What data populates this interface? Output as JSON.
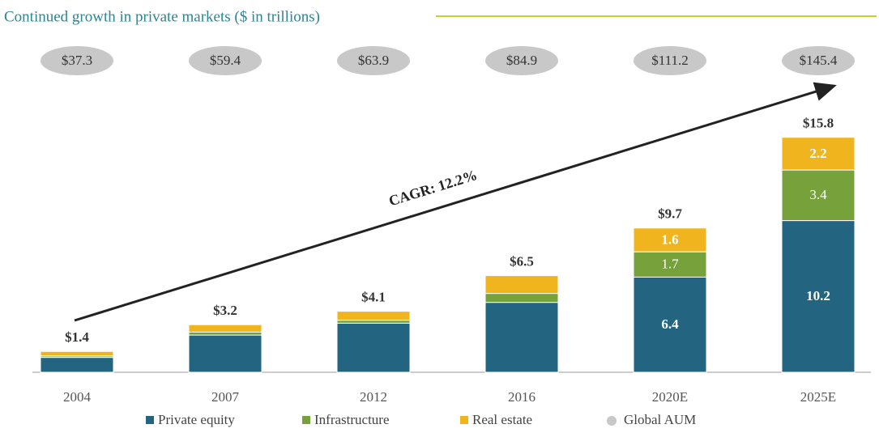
{
  "chart_data": {
    "type": "stacked_bar",
    "title": "Continued growth in private markets ($ in trillions)",
    "categories": [
      "2004",
      "2007",
      "2012",
      "2016",
      "2020E",
      "2025E"
    ],
    "series": [
      {
        "name": "Private equity",
        "color": "#236581",
        "values": [
          1.0,
          2.5,
          3.3,
          4.7,
          6.4,
          10.2
        ],
        "value_labels": [
          null,
          null,
          null,
          null,
          "6.4",
          "10.2"
        ]
      },
      {
        "name": "Infrastructure",
        "color": "#76a13b",
        "values": [
          0.1,
          0.2,
          0.2,
          0.6,
          1.7,
          3.4
        ],
        "value_labels": [
          null,
          null,
          null,
          null,
          "1.7",
          "3.4"
        ]
      },
      {
        "name": "Real estate",
        "color": "#f0b51e",
        "values": [
          0.3,
          0.5,
          0.6,
          1.2,
          1.6,
          2.2
        ],
        "value_labels": [
          null,
          null,
          null,
          null,
          "1.6",
          "2.2"
        ]
      }
    ],
    "totals": [
      1.4,
      3.2,
      4.1,
      6.5,
      9.7,
      15.8
    ],
    "total_labels": [
      "$1.4",
      "$3.2",
      "$4.1",
      "$6.5",
      "$9.7",
      "$15.8"
    ],
    "global_aum": {
      "name": "Global AUM",
      "color": "#c8c8c8",
      "values": [
        37.3,
        59.4,
        63.9,
        84.9,
        111.2,
        145.4
      ],
      "value_labels": [
        "$37.3",
        "$59.4",
        "$63.9",
        "$84.9",
        "$111.2",
        "$145.4"
      ]
    },
    "annotation": "CAGR: 12.2%",
    "ylim": [
      0,
      16
    ]
  }
}
